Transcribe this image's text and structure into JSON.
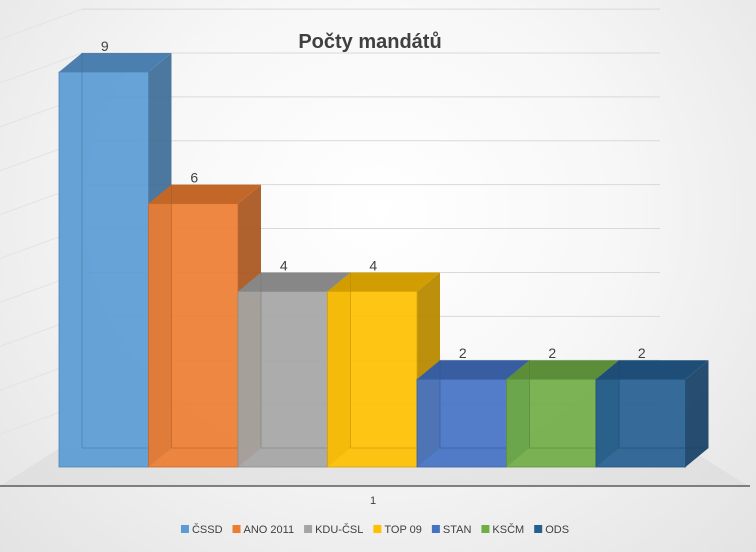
{
  "chart_data": {
    "type": "bar",
    "title": "Počty mandátů",
    "categories": [
      "1"
    ],
    "series": [
      {
        "name": "ČSSD",
        "values": [
          9
        ],
        "color": "#5B9BD5"
      },
      {
        "name": "ANO 2011",
        "values": [
          6
        ],
        "color": "#ED7D31"
      },
      {
        "name": "KDU-ČSL",
        "values": [
          4
        ],
        "color": "#A5A5A5"
      },
      {
        "name": "TOP 09",
        "values": [
          4
        ],
        "color": "#FFC000"
      },
      {
        "name": "STAN",
        "values": [
          2
        ],
        "color": "#4472C4"
      },
      {
        "name": "KSČM",
        "values": [
          2
        ],
        "color": "#70AD47"
      },
      {
        "name": "ODS",
        "values": [
          2
        ],
        "color": "#255E91"
      }
    ],
    "ylim": [
      0,
      10
    ],
    "grid": true,
    "legend_position": "bottom",
    "data_labels": true,
    "style": "3d-column"
  }
}
